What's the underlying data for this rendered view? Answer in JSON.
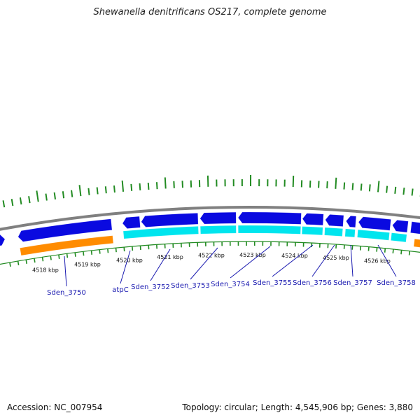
{
  "title": "Shewanella denitrificans OS217, complete genome",
  "footer": {
    "accession": "Accession: NC_007954",
    "topology": "Topology: circular; Length: 4,545,906 bp; Genes: 3,880"
  },
  "colors": {
    "backbone": "#808080",
    "forward_cds": "#0a0ae0",
    "cds_light": "#00e5ee",
    "gene_orange": "#ff8c00",
    "gc_ticks": "#228b22",
    "label_blue": "#1a1ab0"
  },
  "kbp_labels": [
    "4518 kbp",
    "4519 kbp",
    "4520 kbp",
    "4521 kbp",
    "4522 kbp",
    "4523 kbp",
    "4524 kbp",
    "4525 kbp",
    "4526 kbp"
  ],
  "genes": [
    "Sden_3750",
    "atpC",
    "Sden_3752",
    "Sden_3753",
    "Sden_3754",
    "Sden_3755",
    "Sden_3756",
    "Sden_3757",
    "Sden_3758"
  ]
}
